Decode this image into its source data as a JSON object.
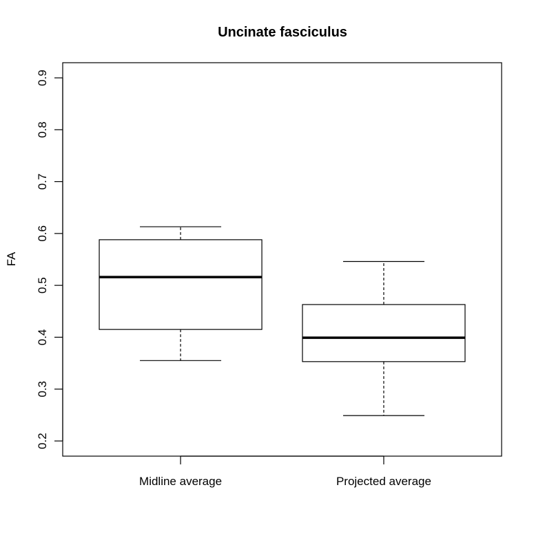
{
  "chart_data": {
    "type": "boxplot",
    "title": "Uncinate fasciculus",
    "xlabel": "",
    "ylabel": "FA",
    "ylim": [
      0.2,
      0.9
    ],
    "yticks": [
      0.2,
      0.3,
      0.4,
      0.5,
      0.6,
      0.7,
      0.8,
      0.9
    ],
    "ytick_labels": [
      "0.2",
      "0.3",
      "0.4",
      "0.5",
      "0.6",
      "0.7",
      "0.8",
      "0.9"
    ],
    "categories": [
      "Midline average",
      "Projected average"
    ],
    "boxes": [
      {
        "label": "Midline average",
        "whisker_low": 0.355,
        "q1": 0.415,
        "median": 0.516,
        "q3": 0.588,
        "whisker_high": 0.613
      },
      {
        "label": "Projected average",
        "whisker_low": 0.249,
        "q1": 0.353,
        "median": 0.399,
        "q3": 0.463,
        "whisker_high": 0.546
      }
    ],
    "grid": false,
    "legend": "none"
  }
}
